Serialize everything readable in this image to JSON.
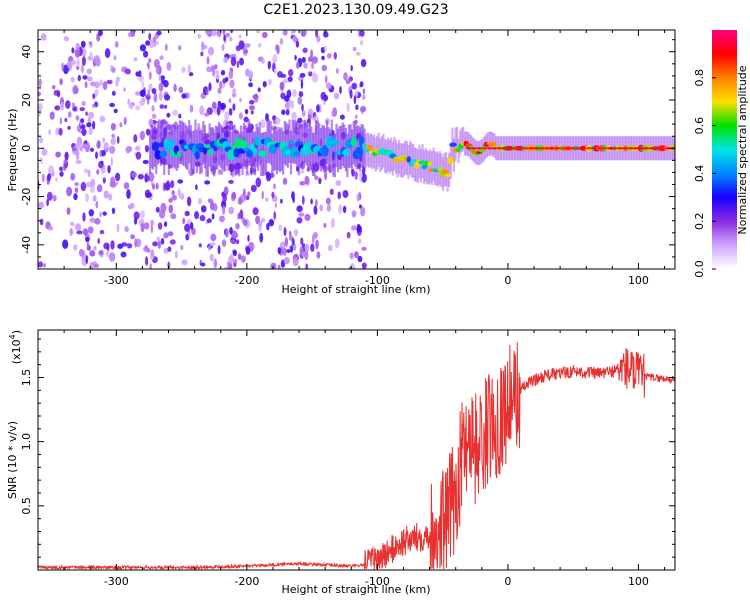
{
  "title": "C2E1.2023.130.09.49.G23",
  "chart_data": [
    {
      "type": "heatmap",
      "description": "spectrogram",
      "xlabel": "Height of straight line (km)",
      "ylabel": "Frequency (Hz)",
      "xlim": [
        -360,
        128
      ],
      "ylim": [
        -50,
        49
      ],
      "xticks": [
        -300,
        -200,
        -100,
        0,
        100
      ],
      "yticks": [
        -40,
        -20,
        0,
        20,
        40
      ],
      "colorbar": {
        "label": "Normalized spectral amplitude",
        "range": [
          0,
          1
        ],
        "ticks": [
          "0.0",
          "0.2",
          "0.4",
          "0.6",
          "0.8"
        ],
        "colors": [
          "#ffffff",
          "#cfa3ff",
          "#8a2be2",
          "#1a00ff",
          "#0088ff",
          "#00e5e5",
          "#00e000",
          "#ffe000",
          "#ff7f00",
          "#ff0000",
          "#ff0080"
        ]
      },
      "features": [
        {
          "name": "noise_region",
          "x_from": -360,
          "x_to": -110,
          "freq_range": [
            -50,
            49
          ]
        },
        {
          "name": "signal_band",
          "x_from": -270,
          "x_to": 128,
          "center_freq": 0
        }
      ]
    },
    {
      "type": "line",
      "xlabel": "Height of straight line (km)",
      "ylabel": "SNR (10 * v/v)",
      "yscale_label": "(x10",
      "yscale_exp": "4",
      "xlim": [
        -360,
        128
      ],
      "ylim": [
        0,
        1.87
      ],
      "xticks": [
        -300,
        -200,
        -100,
        0,
        100
      ],
      "yticks": [
        0.5,
        1.0,
        1.5
      ],
      "color": "#e8302f",
      "series": [
        {
          "x": [
            -360,
            -300,
            -250,
            -200,
            -180,
            -160,
            -140,
            -120,
            -110,
            -100,
            -90,
            -80,
            -70,
            -60,
            -55,
            -50,
            -45,
            -40,
            -35,
            -30,
            -25,
            -20,
            -15,
            -10,
            -5,
            0,
            5,
            10,
            15,
            20,
            30,
            40,
            50,
            60,
            70,
            80,
            90,
            95,
            100,
            110,
            120,
            128
          ],
          "y": [
            0.02,
            0.02,
            0.02,
            0.03,
            0.04,
            0.05,
            0.04,
            0.03,
            0.04,
            0.08,
            0.15,
            0.22,
            0.25,
            0.28,
            0.3,
            0.35,
            0.45,
            0.6,
            0.9,
            1.1,
            0.95,
            1.0,
            1.1,
            1.15,
            1.2,
            1.3,
            1.35,
            1.4,
            1.45,
            1.48,
            1.52,
            1.53,
            1.55,
            1.54,
            1.53,
            1.55,
            1.58,
            1.55,
            1.52,
            1.5,
            1.49,
            1.48
          ]
        }
      ]
    }
  ]
}
